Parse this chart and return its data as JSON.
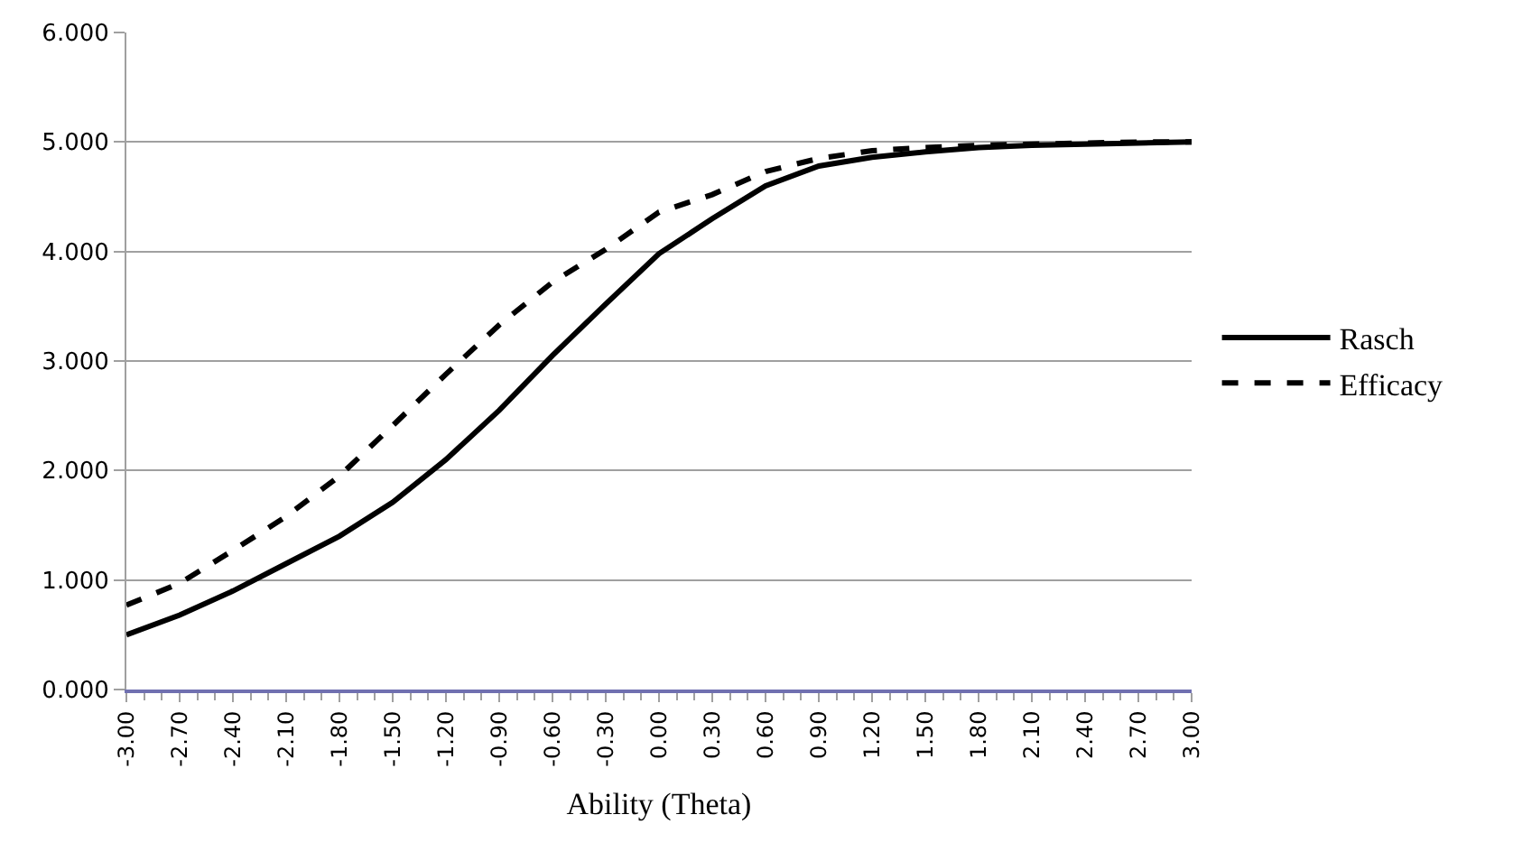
{
  "chart_data": {
    "type": "line",
    "xlabel": "Ability (Theta)",
    "x": [
      -3.0,
      -2.7,
      -2.4,
      -2.1,
      -1.8,
      -1.5,
      -1.2,
      -0.9,
      -0.6,
      -0.3,
      0.0,
      0.3,
      0.6,
      0.9,
      1.2,
      1.5,
      1.8,
      2.1,
      2.4,
      2.7,
      3.0
    ],
    "series": [
      {
        "name": "Rasch",
        "color": "#000000",
        "line_style": "solid",
        "values": [
          0.5,
          0.68,
          0.9,
          1.15,
          1.4,
          1.71,
          2.1,
          2.55,
          3.05,
          3.52,
          3.98,
          4.3,
          4.6,
          4.78,
          4.86,
          4.91,
          4.95,
          4.97,
          4.98,
          4.99,
          5.0
        ]
      },
      {
        "name": "Efficacy",
        "color": "#000000",
        "line_style": "dashed",
        "values": [
          0.77,
          0.97,
          1.27,
          1.58,
          1.95,
          2.41,
          2.88,
          3.33,
          3.72,
          4.02,
          4.36,
          4.52,
          4.73,
          4.85,
          4.92,
          4.95,
          4.97,
          4.98,
          4.99,
          5.0,
          5.0
        ]
      }
    ],
    "xlim": [
      -3.0,
      3.0
    ],
    "xticks": [
      {
        "value": -3.0,
        "label": "-3.00"
      },
      {
        "value": -2.7,
        "label": "-2.70"
      },
      {
        "value": -2.4,
        "label": "-2.40"
      },
      {
        "value": -2.1,
        "label": "-2.10"
      },
      {
        "value": -1.8,
        "label": "-1.80"
      },
      {
        "value": -1.5,
        "label": "-1.50"
      },
      {
        "value": -1.2,
        "label": "-1.20"
      },
      {
        "value": -0.9,
        "label": "-0.90"
      },
      {
        "value": -0.6,
        "label": "-0.60"
      },
      {
        "value": -0.3,
        "label": "-0.30"
      },
      {
        "value": 0.0,
        "label": "0.00"
      },
      {
        "value": 0.3,
        "label": "0.30"
      },
      {
        "value": 0.6,
        "label": "0.60"
      },
      {
        "value": 0.9,
        "label": "0.90"
      },
      {
        "value": 1.2,
        "label": "1.20"
      },
      {
        "value": 1.5,
        "label": "1.50"
      },
      {
        "value": 1.8,
        "label": "1.80"
      },
      {
        "value": 2.1,
        "label": "2.10"
      },
      {
        "value": 2.4,
        "label": "2.40"
      },
      {
        "value": 2.7,
        "label": "2.70"
      },
      {
        "value": 3.0,
        "label": "3.00"
      }
    ],
    "ylim": [
      0,
      6
    ],
    "yticks": [
      {
        "value": 0,
        "label": "0.000"
      },
      {
        "value": 1,
        "label": "1.000"
      },
      {
        "value": 2,
        "label": "2.000"
      },
      {
        "value": 3,
        "label": "3.000"
      },
      {
        "value": 4,
        "label": "4.000"
      },
      {
        "value": 5,
        "label": "5.000"
      },
      {
        "value": 6,
        "label": "6.000"
      }
    ],
    "grid": "y",
    "legend": "right",
    "marker": "none"
  }
}
